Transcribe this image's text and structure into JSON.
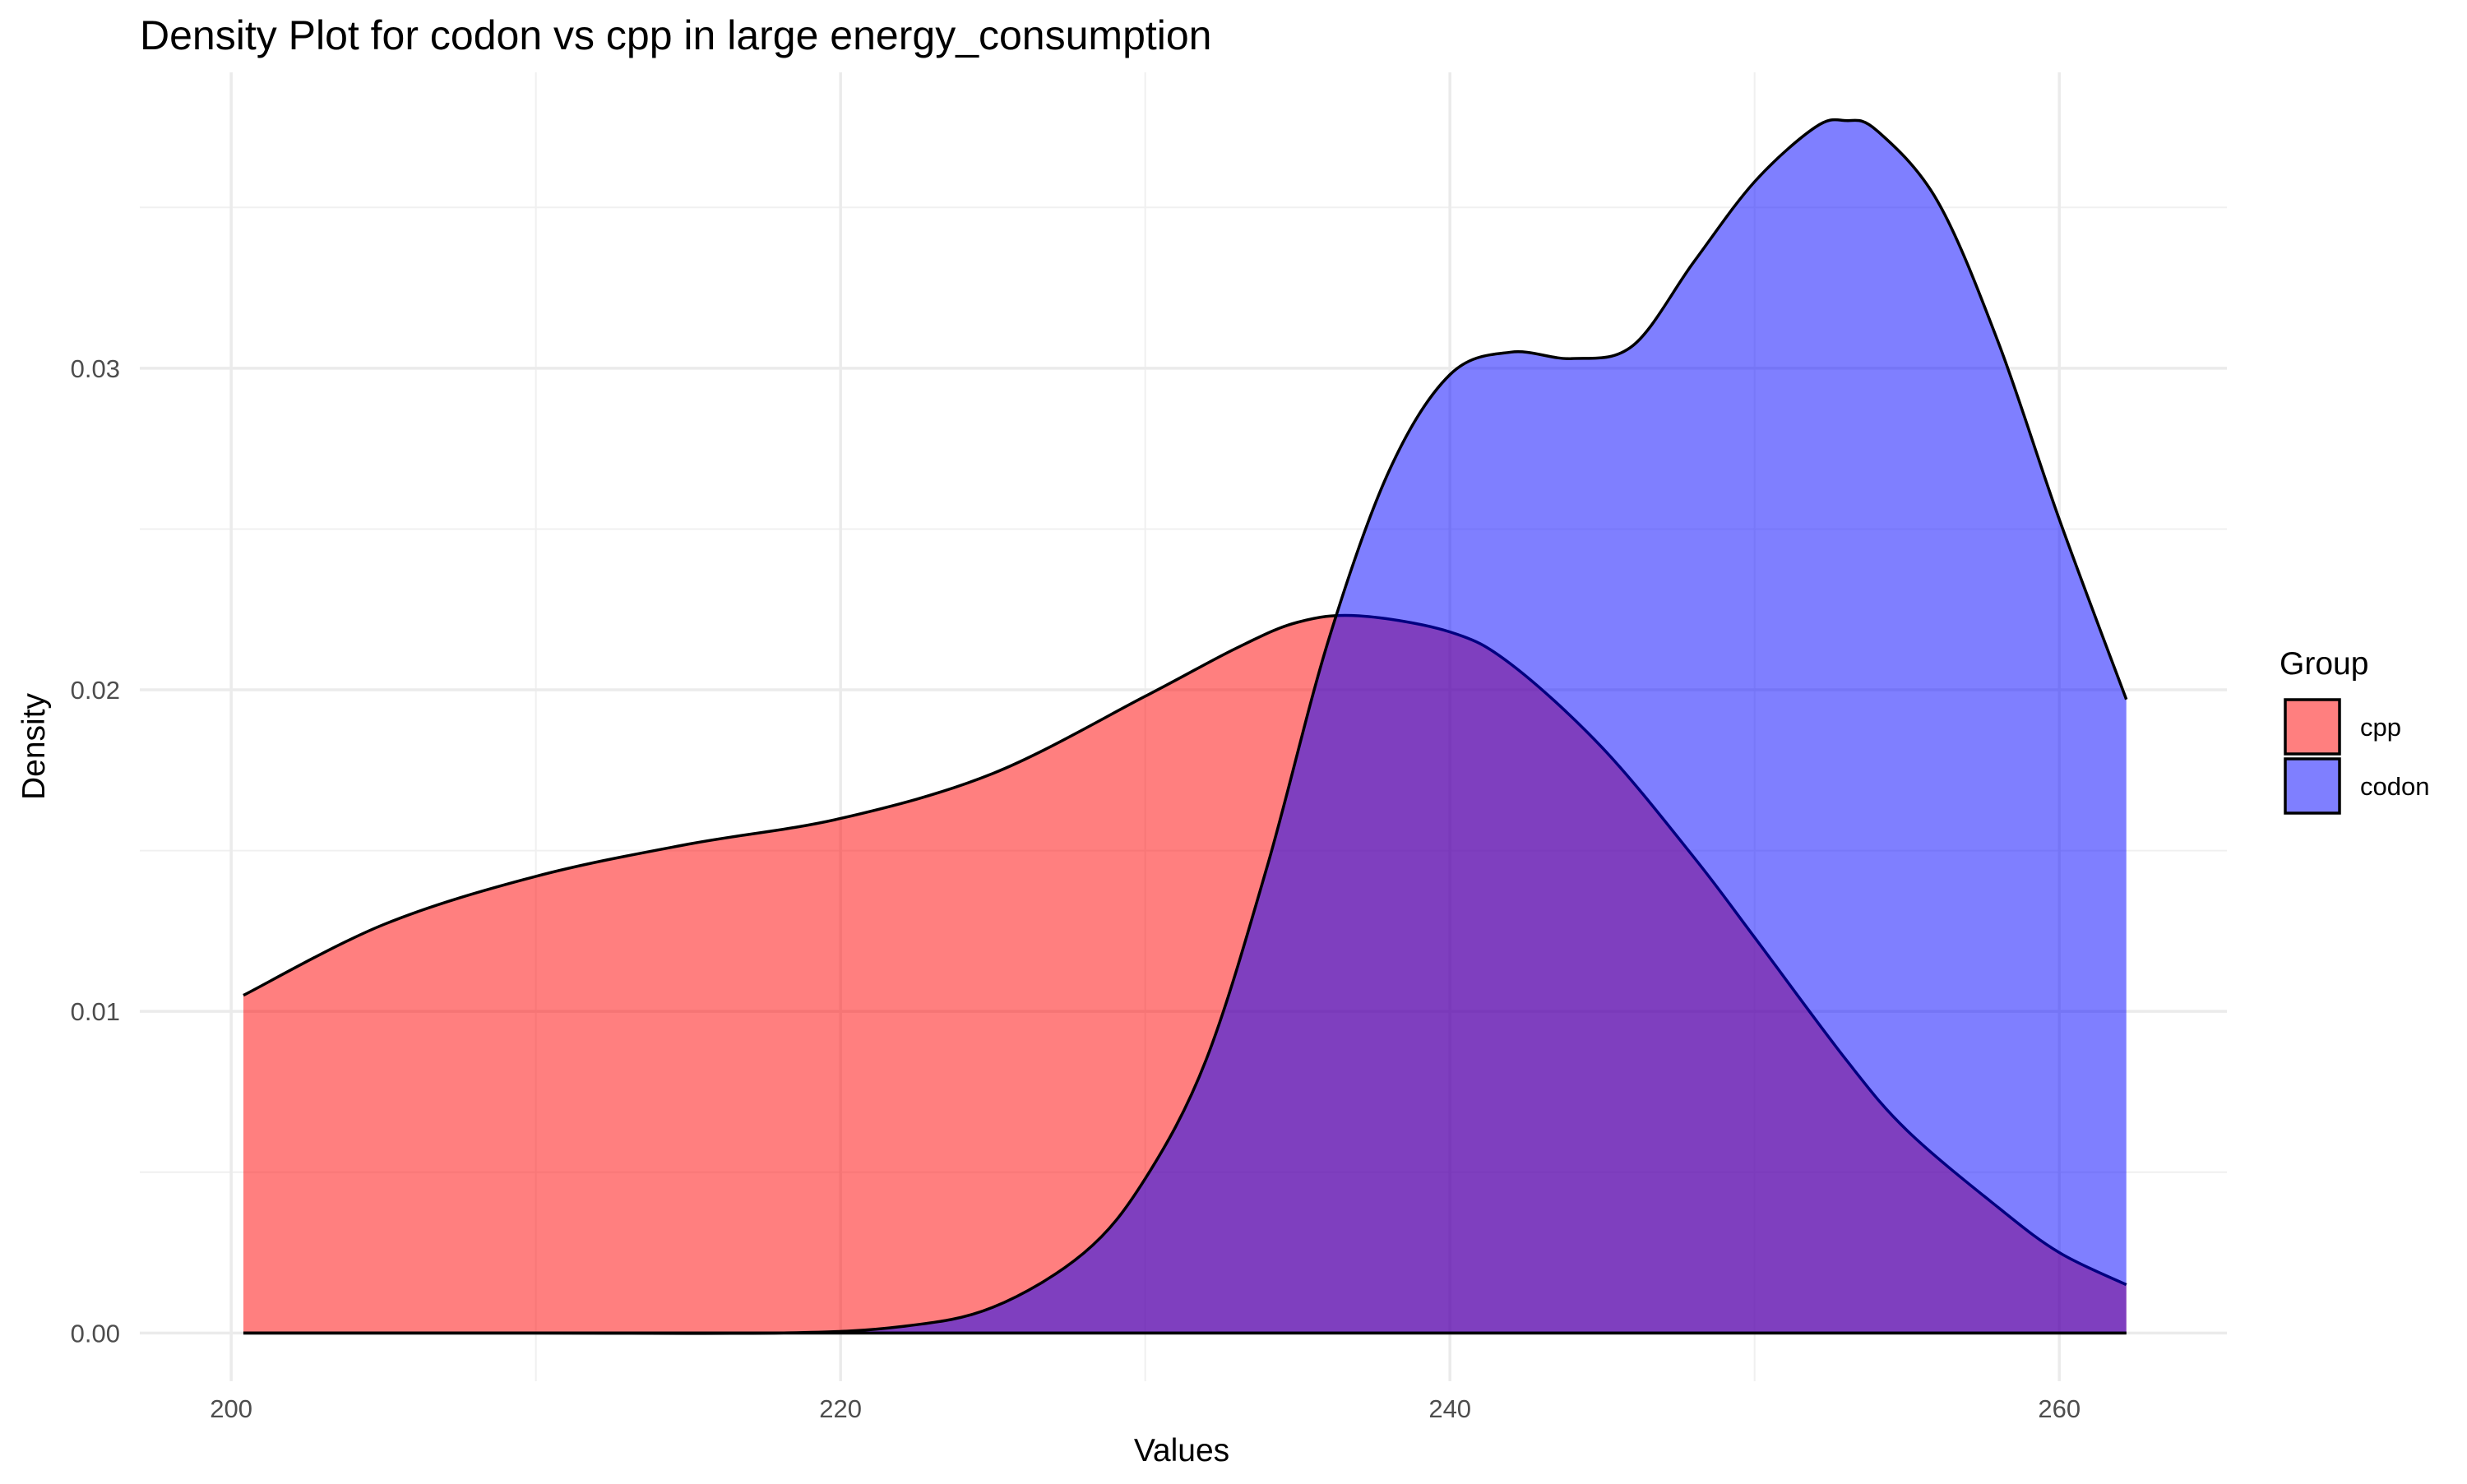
{
  "chart_data": {
    "type": "area",
    "title": "Density Plot for codon vs cpp in large energy_consumption",
    "xlabel": "Values",
    "ylabel": "Density",
    "xlim": [
      197,
      265.5
    ],
    "ylim": [
      -0.0015,
      0.0392
    ],
    "x_ticks": [
      200,
      220,
      240,
      260
    ],
    "x_tick_labels": [
      "200",
      "220",
      "240",
      "260"
    ],
    "y_ticks": [
      0.0,
      0.01,
      0.02,
      0.03
    ],
    "y_tick_labels": [
      "0.00",
      "0.01",
      "0.02",
      "0.03"
    ],
    "grid": true,
    "legend": {
      "title": "Group",
      "placement": "right"
    },
    "series": [
      {
        "name": "cpp",
        "color": "#FF0000",
        "opacity": 0.5,
        "x": [
          200.4,
          205,
          210,
          215,
          220,
          225,
          230,
          233,
          235,
          237,
          240,
          242,
          245,
          248,
          250,
          253,
          255,
          258,
          260,
          262.2
        ],
        "y": [
          0.0105,
          0.0127,
          0.0142,
          0.0152,
          0.016,
          0.0174,
          0.0198,
          0.0213,
          0.0221,
          0.0223,
          0.0218,
          0.0208,
          0.0182,
          0.0148,
          0.0123,
          0.0085,
          0.0063,
          0.0039,
          0.0025,
          0.0015
        ]
      },
      {
        "name": "codon",
        "color": "#0000FF",
        "opacity": 0.5,
        "x": [
          200.4,
          210,
          218,
          222,
          225,
          228,
          230,
          232,
          234,
          236,
          238,
          240,
          242,
          244,
          246,
          248,
          250,
          252,
          253,
          254,
          256,
          258,
          260,
          262.2
        ],
        "y": [
          0.0,
          0.0,
          0.0,
          0.0002,
          0.0008,
          0.0025,
          0.0048,
          0.0085,
          0.0145,
          0.0215,
          0.0268,
          0.0298,
          0.0305,
          0.0303,
          0.0307,
          0.0333,
          0.0358,
          0.0375,
          0.0377,
          0.0374,
          0.0352,
          0.0308,
          0.0253,
          0.0197
        ]
      }
    ]
  }
}
